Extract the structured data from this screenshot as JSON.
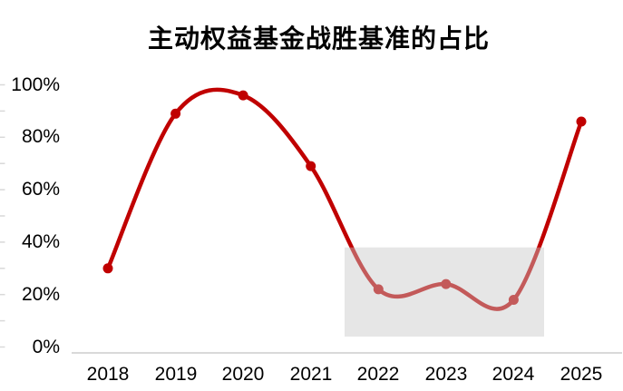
{
  "page": {
    "background": "#FFFFFF"
  },
  "chart_data": {
    "type": "line",
    "title": "主动权益基金战胜基准的占比",
    "categories": [
      "2018",
      "2019",
      "2020",
      "2021",
      "2022",
      "2023",
      "2024",
      "2025"
    ],
    "values": [
      30,
      89,
      96,
      69,
      22,
      24,
      18,
      86
    ],
    "value_unit": "%",
    "xlabel": "",
    "ylabel": "",
    "ylim": [
      0,
      100
    ],
    "y_major_ticks": [
      0,
      20,
      40,
      60,
      80,
      100
    ],
    "y_tick_labels": [
      "0%",
      "20%",
      "40%",
      "60%",
      "80%",
      "100%"
    ],
    "y_minor_tick_step": 10,
    "grid": "off",
    "legend": "none",
    "smooth_line": true,
    "line_color": "#C00000",
    "marker_color": "#C00000",
    "axis_color": "#D9D9D9",
    "title_color": "#000000",
    "highlight_region": {
      "shape": "rect",
      "x_from_year": 2021.5,
      "x_to_year": 2024.45,
      "y_from_pct": 4,
      "y_to_pct": 38,
      "fill": "#C8C8C8",
      "opacity": 0.45
    }
  }
}
